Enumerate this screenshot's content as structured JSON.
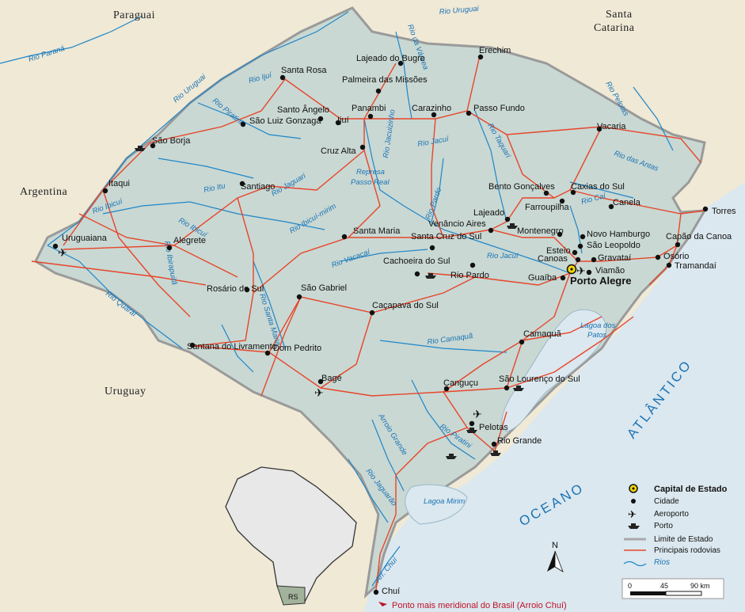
{
  "countries": {
    "paraguai": "Paraguai",
    "argentina": "Argentina",
    "uruguay": "Uruguay",
    "santa_catarina_1": "Santa",
    "santa_catarina_2": "Catarina"
  },
  "ocean": {
    "word1": "OCEANO",
    "word2": "ATLÂNTICO"
  },
  "lagoons": {
    "patos_1": "Lagoa dos",
    "patos_2": "Patos",
    "mirim": "Lagoa Mirim"
  },
  "capital": {
    "name": "Porto Alegre"
  },
  "cities": [
    {
      "name": "Erechim"
    },
    {
      "name": "Lajeado do Bugre"
    },
    {
      "name": "Palmeira das Missões"
    },
    {
      "name": "Santa Rosa"
    },
    {
      "name": "Santo Ângelo"
    },
    {
      "name": "Panambi"
    },
    {
      "name": "Carazinho"
    },
    {
      "name": "Passo Fundo"
    },
    {
      "name": "São Luiz Gonzaga"
    },
    {
      "name": "Ijuí"
    },
    {
      "name": "São Borja"
    },
    {
      "name": "Cruz Alta"
    },
    {
      "name": "Vacaria"
    },
    {
      "name": "Itaqui"
    },
    {
      "name": "Santiago"
    },
    {
      "name": "Bento Gonçalves"
    },
    {
      "name": "Caxias do Sul"
    },
    {
      "name": "Farroupilha"
    },
    {
      "name": "Canela"
    },
    {
      "name": "Torres"
    },
    {
      "name": "Lajeado"
    },
    {
      "name": "Venâncio Aires"
    },
    {
      "name": "Montenegro"
    },
    {
      "name": "Novo Hamburgo"
    },
    {
      "name": "São Leopoldo"
    },
    {
      "name": "Capão da Canoa"
    },
    {
      "name": "Uruguaiana"
    },
    {
      "name": "Alegrete"
    },
    {
      "name": "Santa Maria"
    },
    {
      "name": "Santa Cruz do Sul"
    },
    {
      "name": "Esteio"
    },
    {
      "name": "Canoas"
    },
    {
      "name": "Gravataí"
    },
    {
      "name": "Osório"
    },
    {
      "name": "Tramandaí"
    },
    {
      "name": "Viamão"
    },
    {
      "name": "Cachoeira do Sul"
    },
    {
      "name": "Rio Pardo"
    },
    {
      "name": "Guaíba"
    },
    {
      "name": "Rosário do Sul"
    },
    {
      "name": "São Gabriel"
    },
    {
      "name": "Caçapava do Sul"
    },
    {
      "name": "Camaquã"
    },
    {
      "name": "Santana do Livramento"
    },
    {
      "name": "Dom Pedrito"
    },
    {
      "name": "Bagé"
    },
    {
      "name": "Canguçu"
    },
    {
      "name": "São Lourenço do Sul"
    },
    {
      "name": "Pelotas"
    },
    {
      "name": "Rio Grande"
    },
    {
      "name": "Chuí"
    }
  ],
  "rivers": [
    {
      "name": "Rio Uruguai"
    },
    {
      "name": "Rio Paraná"
    },
    {
      "name": "Rio da Várzea"
    },
    {
      "name": "Rio Uruguai"
    },
    {
      "name": "Rio Ijuí"
    },
    {
      "name": "Rio Piratini"
    },
    {
      "name": "Rio Jacuizinho"
    },
    {
      "name": "Rio Jacuí"
    },
    {
      "name": "Rio Taquari"
    },
    {
      "name": "Rio Pelotas"
    },
    {
      "name": "Rio das Antas"
    },
    {
      "name": "Rio Ibicuí"
    },
    {
      "name": "Rio Itu"
    },
    {
      "name": "Rio Jaguari"
    },
    {
      "name": "Rio Ibicuí"
    },
    {
      "name": "Rio Ibicuí-mirim"
    },
    {
      "name": "Rio Ibirapuitã"
    },
    {
      "name": "Rio Santa Maria"
    },
    {
      "name": "Rio Quaraí"
    },
    {
      "name": "Rio Vacacaí"
    },
    {
      "name": "Rio Pardo"
    },
    {
      "name": "Rio Caí"
    },
    {
      "name": "Rio Jacuí"
    },
    {
      "name": "Rio Camaquã"
    },
    {
      "name": "Rio Piratini"
    },
    {
      "name": "Arroio Grande"
    },
    {
      "name": "Rio Jaguarão"
    },
    {
      "name": "Arr. Chuí"
    },
    {
      "name": "Represa Passo Real"
    }
  ],
  "legend": {
    "title": "Capital de Estado",
    "city": "Cidade",
    "airport": "Aeroporto",
    "port": "Porto",
    "border": "Limite de Estado",
    "roads": "Principais rodovias",
    "rivers": "Rios"
  },
  "scale": {
    "t0": "0",
    "t1": "45",
    "t2": "90 km"
  },
  "north": "N",
  "inset_label": "RS",
  "footnote": "Ponto mais meridional do Brasil (Arroio Chuí)",
  "colors": {
    "land": "#c9d8d3",
    "sea": "#dbe8ef",
    "outside": "#efe9d6",
    "road": "#e8452a",
    "river": "#1f86c8",
    "border": "#a9a9a9"
  }
}
